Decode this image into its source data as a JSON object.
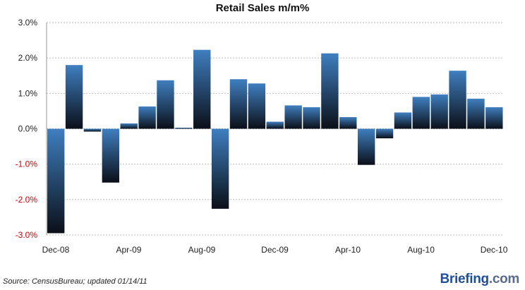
{
  "chart_data": {
    "type": "bar",
    "title": "Retail Sales m/m%",
    "xlabel": "",
    "ylabel": "",
    "ylim": [
      -3.0,
      3.0
    ],
    "yticks": [
      "3.0%",
      "2.0%",
      "1.0%",
      "0.0%",
      "-1.0%",
      "-2.0%",
      "-3.0%"
    ],
    "ytick_values": [
      3,
      2,
      1,
      0,
      -1,
      -2,
      -3
    ],
    "grid": true,
    "legend": "none",
    "categories": [
      "Dec-08",
      "Jan-09",
      "Feb-09",
      "Mar-09",
      "Apr-09",
      "May-09",
      "Jun-09",
      "Jul-09",
      "Aug-09",
      "Sep-09",
      "Oct-09",
      "Nov-09",
      "Dec-09",
      "Jan-10",
      "Feb-10",
      "Mar-10",
      "Apr-10",
      "May-10",
      "Jun-10",
      "Jul-10",
      "Aug-10",
      "Sep-10",
      "Oct-10",
      "Nov-10",
      "Dec-10"
    ],
    "values": [
      -2.95,
      1.8,
      -0.08,
      -1.52,
      0.15,
      0.63,
      1.37,
      0.03,
      2.23,
      -2.26,
      1.4,
      1.28,
      0.2,
      0.66,
      0.61,
      2.13,
      0.33,
      -1.02,
      -0.27,
      0.46,
      0.9,
      0.97,
      1.64,
      0.85,
      0.61
    ],
    "xtick_labels": [
      "Dec-08",
      "Apr-09",
      "Aug-09",
      "Dec-09",
      "Apr-10",
      "Aug-10",
      "Dec-10"
    ],
    "xtick_indices": [
      0,
      4,
      8,
      12,
      16,
      20,
      24
    ],
    "colors": {
      "bar_top": "#3f7fc0",
      "bar_bottom": "#0b0f18",
      "grid": "#bdbdbd",
      "negative_tick": "#cc0000",
      "positive_tick": "#222222"
    }
  },
  "footer": {
    "source": "Source: CensusBureau; updated 01/14/11",
    "brand_main": "Briefing",
    "brand_suffix": ".com"
  }
}
